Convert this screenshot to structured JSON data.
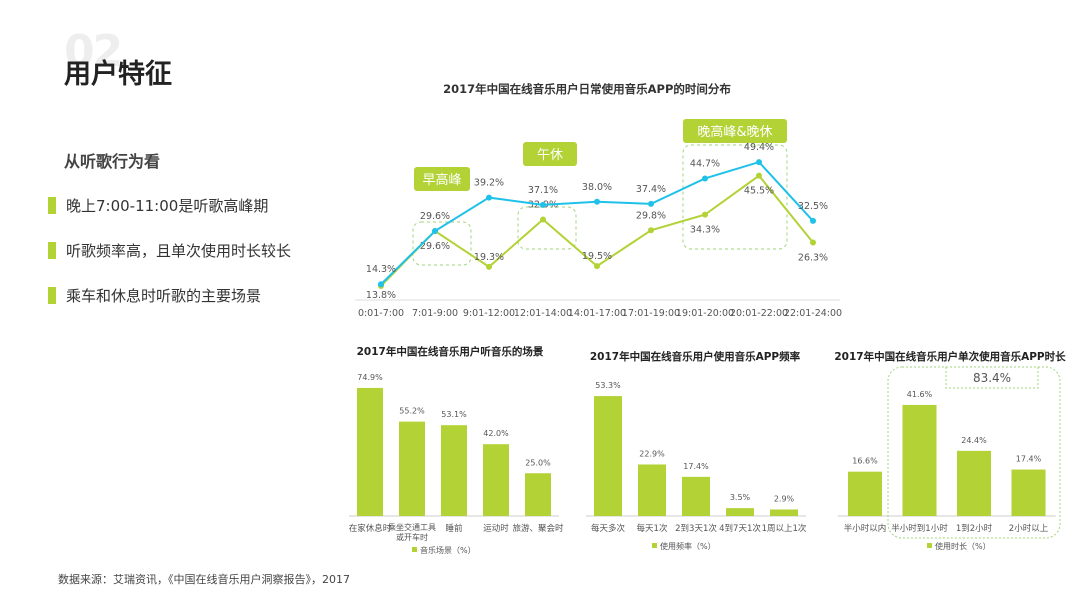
{
  "header": {
    "section_number": "02",
    "title": "用户特征"
  },
  "left": {
    "subtitle": "从听歌行为看",
    "points": [
      "晚上7:00-11:00是听歌高峰期",
      "听歌频率高，且单次使用时长较长",
      "乘车和休息时听歌的主要场景"
    ]
  },
  "source": "数据来源：艾瑞资讯，《中国在线音乐用户洞察报告》，2017",
  "colors": {
    "green": "#b2d235",
    "blue": "#1fc1e8"
  },
  "chart_data": [
    {
      "type": "line",
      "title": "2017年中国在线音乐用户日常使用音乐APP的时间分布",
      "categories": [
        "0:01-7:00",
        "7:01-9:00",
        "9:01-12:00",
        "12:01-14:00",
        "14:01-17:00",
        "17:01-19:00",
        "19:01-20:00",
        "20:01-22:00",
        "22:01-24:00"
      ],
      "series": [
        {
          "name": "blue",
          "values": [
            14.3,
            29.6,
            39.2,
            37.1,
            38.0,
            37.4,
            44.7,
            49.4,
            32.5
          ]
        },
        {
          "name": "green",
          "values": [
            13.8,
            29.6,
            19.3,
            32.9,
            19.5,
            29.8,
            34.3,
            45.5,
            26.3
          ]
        }
      ],
      "annotations": [
        "早高峰",
        "午休",
        "晚高峰&晚休"
      ]
    },
    {
      "type": "bar",
      "title": "2017年中国在线音乐用户听音乐的场景",
      "categories": [
        "在家休息时",
        "乘坐交通工具或开车时",
        "睡前",
        "运动时",
        "旅游、聚会时"
      ],
      "values": [
        74.9,
        55.2,
        53.1,
        42.0,
        25.0
      ],
      "legend": "音乐场景（%）"
    },
    {
      "type": "bar",
      "title": "2017年中国在线音乐用户使用音乐APP频率",
      "categories": [
        "每天多次",
        "每天1次",
        "2到3天1次",
        "4到7天1次",
        "1周以上1次"
      ],
      "values": [
        53.3,
        22.9,
        17.4,
        3.5,
        2.9
      ],
      "legend": "使用频率（%）"
    },
    {
      "type": "bar",
      "title": "2017年中国在线音乐用户单次使用音乐APP时长",
      "categories": [
        "半小时以内",
        "半小时到1小时",
        "1到2小时",
        "2小时以上"
      ],
      "values": [
        16.6,
        41.6,
        24.4,
        17.4
      ],
      "legend": "使用时长（%）",
      "annotation": "83.4%"
    }
  ]
}
